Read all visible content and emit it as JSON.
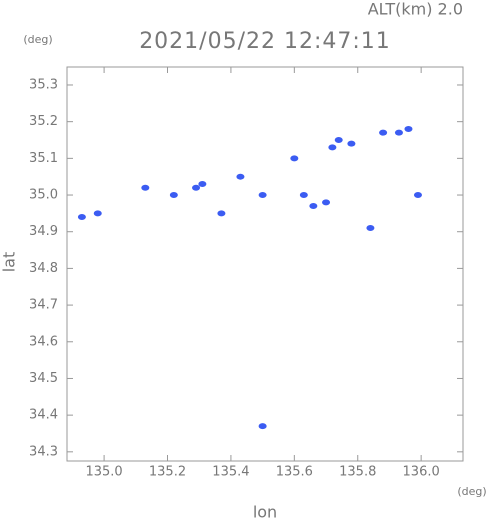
{
  "chart_data": {
    "type": "scatter",
    "title": "2021/05/22 12:47:11",
    "subtitle": "ALT(km) 2.0",
    "x_label": "lon",
    "y_label": "lat",
    "x_unit": "(deg)",
    "y_unit": "(deg)",
    "color": "#3b5cf2",
    "x": [
      134.93,
      134.98,
      135.13,
      135.22,
      135.29,
      135.31,
      135.37,
      135.43,
      135.5,
      135.6,
      135.63,
      135.66,
      135.7,
      135.72,
      135.74,
      135.78,
      135.84,
      135.88,
      135.93,
      135.96,
      135.99,
      135.5
    ],
    "values": [
      34.94,
      34.95,
      35.02,
      35.0,
      35.02,
      35.03,
      34.95,
      35.05,
      35.0,
      35.1,
      35.0,
      34.97,
      34.98,
      35.13,
      35.15,
      35.14,
      34.91,
      35.17,
      35.17,
      35.18,
      35.0,
      34.37
    ],
    "xlim": [
      134.883,
      136.132
    ],
    "ylim": [
      34.275,
      35.349
    ],
    "xticks": [
      {
        "value": 135,
        "label": "135.0"
      },
      135.2,
      135.4,
      135.6,
      135.8,
      {
        "value": 136,
        "label": "136.0"
      }
    ],
    "yticks": [
      34.3,
      34.4,
      34.5,
      34.6,
      34.7,
      34.8,
      34.9,
      {
        "value": 35,
        "label": "35.0"
      },
      35.1,
      35.2,
      35.3
    ]
  }
}
